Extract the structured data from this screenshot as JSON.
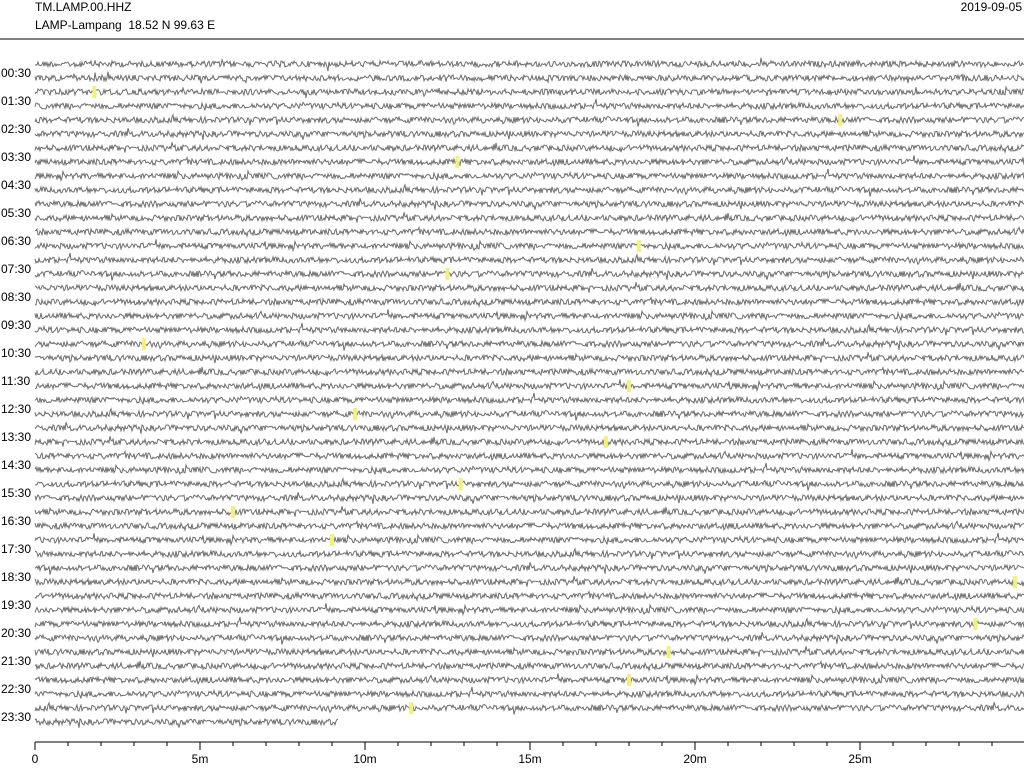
{
  "chart_data": {
    "type": "helicorder",
    "station": "TM.LAMP.00.HHZ",
    "location": "LAMP-Lampang  18.52 N 99.63 E",
    "date": "2019-09-05",
    "row_labels": [
      "00:30",
      "01:30",
      "02:30",
      "03:30",
      "04:30",
      "05:30",
      "06:30",
      "07:30",
      "08:30",
      "09:30",
      "10:30",
      "11:30",
      "12:30",
      "13:30",
      "14:30",
      "15:30",
      "16:30",
      "17:30",
      "18:30",
      "19:30",
      "20:30",
      "21:30",
      "22:30",
      "23:30"
    ],
    "xlim": [
      0,
      30
    ],
    "xticks": [
      {
        "value": 0,
        "label": "0"
      },
      {
        "value": 5,
        "label": "5m"
      },
      {
        "value": 10,
        "label": "10m"
      },
      {
        "value": 15,
        "label": "15m"
      },
      {
        "value": 20,
        "label": "20m"
      },
      {
        "value": 25,
        "label": "25m"
      }
    ],
    "data_end_minute": 9.2,
    "trace_color": "#6e6e6e",
    "event_color": "#f5f07a",
    "events": [
      {
        "row": 2,
        "minute": 1.8
      },
      {
        "row": 4,
        "minute": 24.4
      },
      {
        "row": 7,
        "minute": 12.8
      },
      {
        "row": 13,
        "minute": 18.3
      },
      {
        "row": 15,
        "minute": 12.5
      },
      {
        "row": 20,
        "minute": 3.3
      },
      {
        "row": 23,
        "minute": 18.0
      },
      {
        "row": 25,
        "minute": 9.7
      },
      {
        "row": 27,
        "minute": 17.3
      },
      {
        "row": 30,
        "minute": 12.9
      },
      {
        "row": 32,
        "minute": 6.0
      },
      {
        "row": 34,
        "minute": 9.0
      },
      {
        "row": 37,
        "minute": 29.7
      },
      {
        "row": 40,
        "minute": 28.5
      },
      {
        "row": 42,
        "minute": 19.2
      },
      {
        "row": 44,
        "minute": 18.0
      },
      {
        "row": 46,
        "minute": 11.4
      }
    ]
  }
}
